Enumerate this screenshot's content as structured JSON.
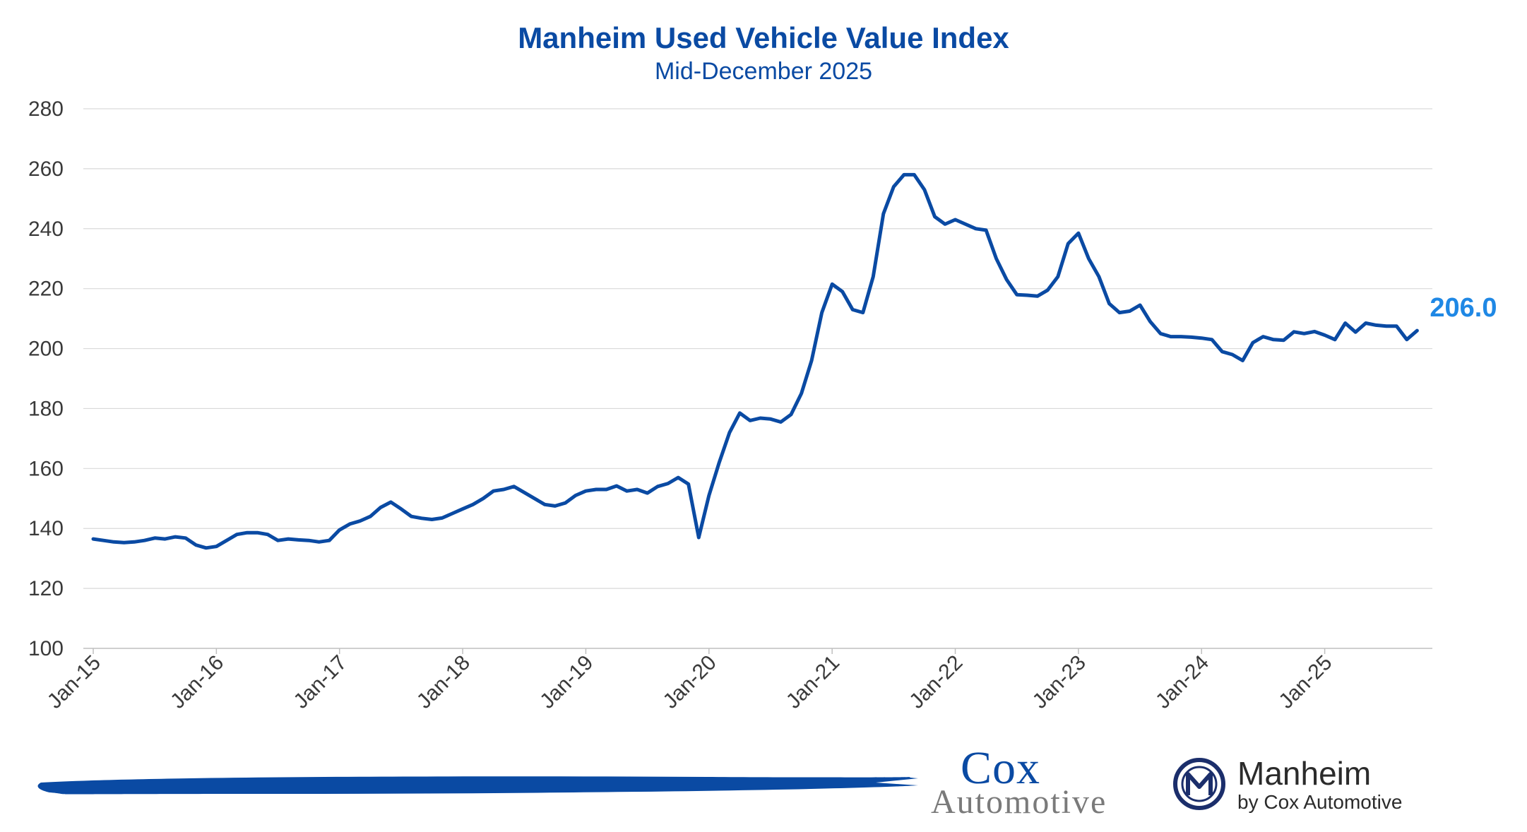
{
  "chart_data": {
    "type": "line",
    "title": "Manheim Used Vehicle Value Index",
    "subtitle": "Mid-December 2025",
    "ylim": [
      100,
      280
    ],
    "y_ticks": [
      100,
      120,
      140,
      160,
      180,
      200,
      220,
      240,
      260,
      280
    ],
    "x_ticks": [
      "Jan-15",
      "Jan-16",
      "Jan-17",
      "Jan-18",
      "Jan-19",
      "Jan-20",
      "Jan-21",
      "Jan-22",
      "Jan-23",
      "Jan-24",
      "Jan-25"
    ],
    "grid": true,
    "series_color": "#0a4aa3",
    "end_label": "206.0",
    "end_label_color": "#1f88e5",
    "series": [
      {
        "values": [
          136.5,
          136,
          135.5,
          135.3,
          135.5,
          136,
          136.8,
          136.5,
          137.2,
          136.8,
          134.5,
          133.5,
          134,
          136,
          138,
          138.6,
          138.6,
          138,
          136,
          136.5,
          136.2,
          136,
          135.5,
          136,
          139.5,
          141.5,
          142.5,
          144,
          147,
          148.8,
          146.5,
          144,
          143.4,
          143,
          143.5,
          145,
          146.5,
          148,
          150,
          152.5,
          153,
          154,
          152,
          150,
          148,
          147.5,
          148.5,
          151,
          152.5,
          153,
          153,
          154.2,
          152.5,
          153,
          151.8,
          154,
          155,
          157,
          154.8,
          137,
          151,
          162,
          172,
          178.5,
          176,
          176.8,
          176.5,
          175.5,
          178,
          185,
          196,
          212,
          221.5,
          219,
          213,
          212,
          224,
          245,
          254,
          258,
          258,
          253,
          244,
          241.5,
          243,
          241.5,
          240,
          239.5,
          230,
          223,
          218,
          217.8,
          217.5,
          219.5,
          224,
          235,
          238.5,
          230,
          224,
          215,
          212,
          212.5,
          214.5,
          209,
          205,
          204,
          204,
          203.8,
          203.5,
          203,
          199,
          198,
          196,
          202,
          204,
          203,
          202.8,
          205.6,
          205,
          205.7,
          204.5,
          203,
          208.5,
          205.5,
          208.5,
          207.8,
          207.5,
          207.5,
          203,
          206
        ]
      }
    ]
  },
  "logos": {
    "cox_line1": "Cox",
    "cox_line2": "Automotive",
    "manheim_line1": "Manheim",
    "manheim_line2": "by Cox Automotive",
    "manheim_icon": "manheim-m-icon",
    "brush_icon": "brush-stroke-icon",
    "brush_color": "#0a4aa3"
  }
}
